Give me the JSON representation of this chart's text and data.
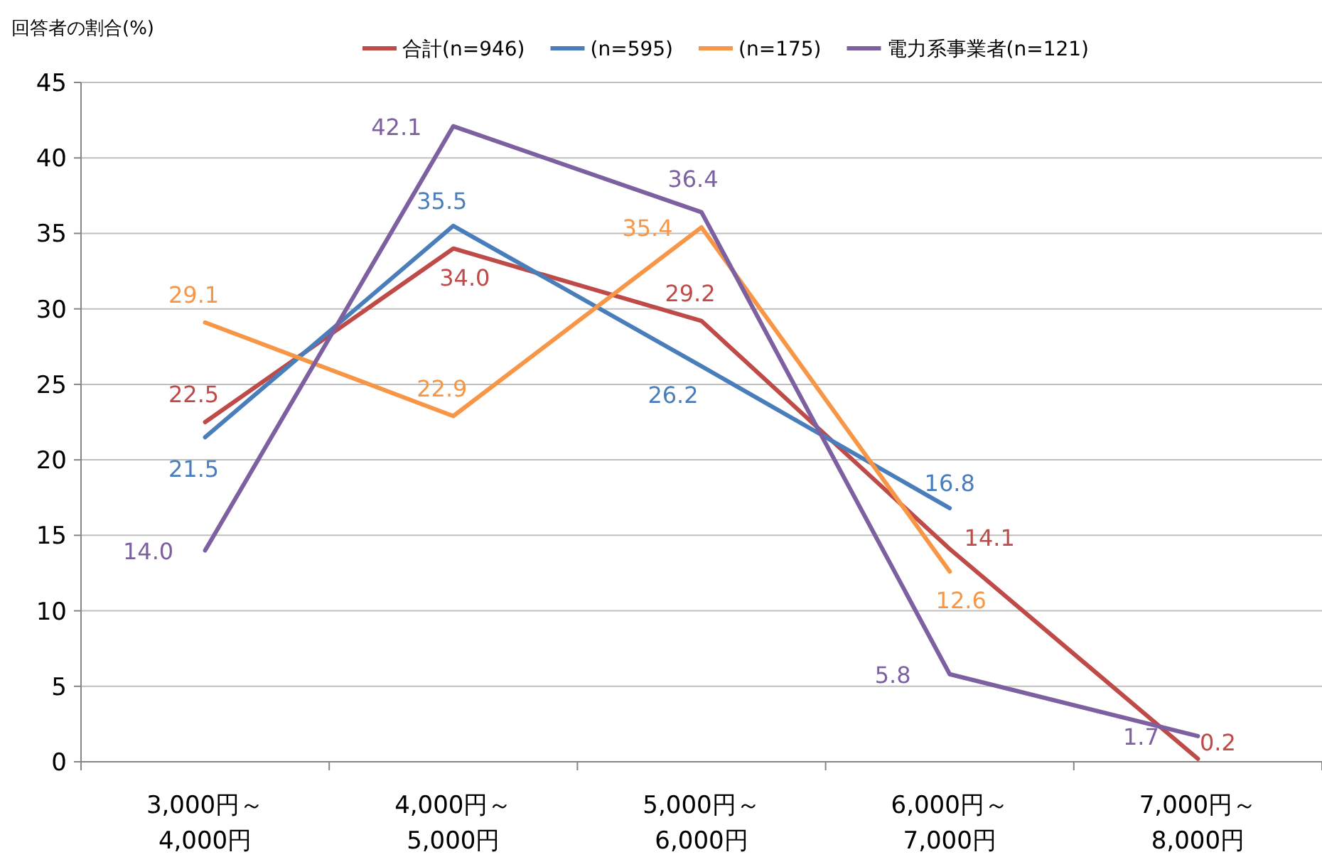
{
  "chart_data": {
    "type": "line",
    "ylabel": "回答者の割合(%)",
    "categories": [
      "3,000円～\n4,000円",
      "4,000円～\n5,000円",
      "5,000円～\n6,000円",
      "6,000円～\n7,000円",
      "7,000円～\n8,000円"
    ],
    "ylim": [
      0,
      45
    ],
    "yticks": [
      0,
      5,
      10,
      15,
      20,
      25,
      30,
      35,
      40,
      45
    ],
    "grid": "y",
    "legend": "top right",
    "marker": "none",
    "line_style": "solid",
    "series": [
      {
        "name": "合計(n=946)",
        "color": "#be4b48",
        "values": [
          22.5,
          34.0,
          29.2,
          14.1,
          0.2
        ],
        "value_labels": [
          "22.5",
          "34.0",
          "29.2",
          "14.1",
          "0.2"
        ]
      },
      {
        "name": "(n=595)",
        "color": "#4a7ebb",
        "values": [
          21.5,
          35.5,
          26.2,
          16.8,
          null
        ],
        "value_labels": [
          "21.5",
          "35.5",
          "26.2",
          "16.8",
          null
        ]
      },
      {
        "name": "(n=175)",
        "color": "#f79646",
        "values": [
          29.1,
          22.9,
          35.4,
          12.6,
          null
        ],
        "value_labels": [
          "29.1",
          "22.9",
          "35.4",
          "12.6",
          null
        ]
      },
      {
        "name": "電力系事業者(n=121)",
        "color": "#7d60a0",
        "values": [
          14.0,
          42.1,
          36.4,
          5.8,
          1.7
        ],
        "value_labels": [
          "14.0",
          "42.1",
          "36.4",
          "5.8",
          "1.7"
        ]
      }
    ]
  }
}
